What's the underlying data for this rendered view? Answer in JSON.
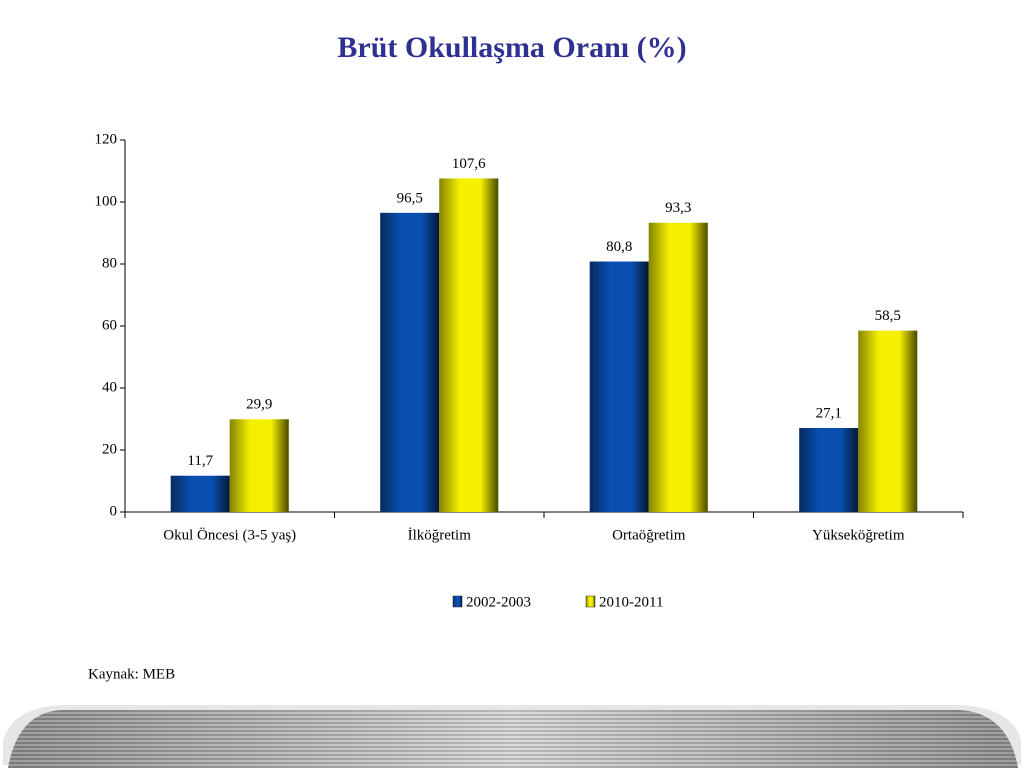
{
  "chart_data": {
    "type": "bar",
    "title": "Brüt Okullaşma Oranı (%)",
    "categories": [
      "Okul Öncesi (3-5 yaş)",
      "İlköğretim",
      "Ortaöğretim",
      "Yükseköğretim"
    ],
    "series": [
      {
        "name": "2002-2003",
        "color": "#0a4fb0",
        "values": [
          11.7,
          96.5,
          80.8,
          27.1
        ],
        "value_labels": [
          "11,7",
          "96,5",
          "80,8",
          "27,1"
        ]
      },
      {
        "name": "2010-2011",
        "color": "#f4f000",
        "values": [
          29.9,
          107.6,
          93.3,
          58.5
        ],
        "value_labels": [
          "29,9",
          "107,6",
          "93,3",
          "58,5"
        ]
      }
    ],
    "ylim": [
      0,
      120
    ],
    "yticks": [
      0,
      20,
      40,
      60,
      80,
      100,
      120
    ],
    "grid": false,
    "legend": "bottom"
  },
  "source": "Kaynak: MEB"
}
